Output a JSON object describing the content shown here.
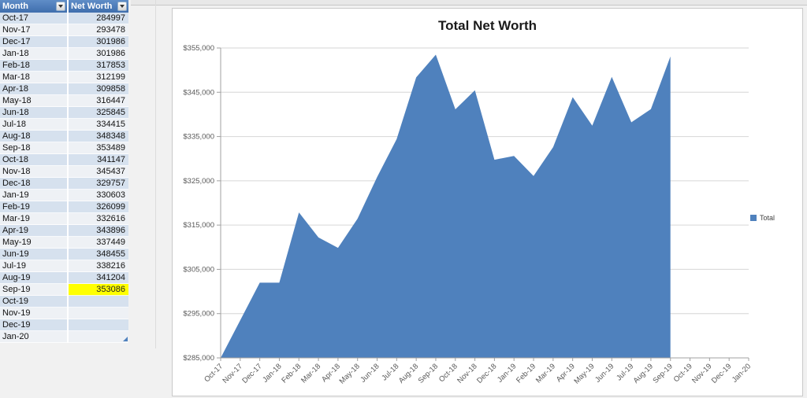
{
  "table": {
    "columns": [
      {
        "label": "Month"
      },
      {
        "label": "Net Worth"
      }
    ],
    "rows": [
      [
        "Oct-17",
        284997
      ],
      [
        "Nov-17",
        293478
      ],
      [
        "Dec-17",
        301986
      ],
      [
        "Jan-18",
        301986
      ],
      [
        "Feb-18",
        317853
      ],
      [
        "Mar-18",
        312199
      ],
      [
        "Apr-18",
        309858
      ],
      [
        "May-18",
        316447
      ],
      [
        "Jun-18",
        325845
      ],
      [
        "Jul-18",
        334415
      ],
      [
        "Aug-18",
        348348
      ],
      [
        "Sep-18",
        353489
      ],
      [
        "Oct-18",
        341147
      ],
      [
        "Nov-18",
        345437
      ],
      [
        "Dec-18",
        329757
      ],
      [
        "Jan-19",
        330603
      ],
      [
        "Feb-19",
        326099
      ],
      [
        "Mar-19",
        332616
      ],
      [
        "Apr-19",
        343896
      ],
      [
        "May-19",
        337449
      ],
      [
        "Jun-19",
        348455
      ],
      [
        "Jul-19",
        338216
      ],
      [
        "Aug-19",
        341204
      ],
      [
        "Sep-19",
        353086
      ],
      [
        "Oct-19",
        null
      ],
      [
        "Nov-19",
        null
      ],
      [
        "Dec-19",
        null
      ],
      [
        "Jan-20",
        null
      ]
    ],
    "highlighted_month": "Sep-19",
    "highlight_color": "#ffff00",
    "band_color": "#d6e1ee",
    "header_color": "#4f81bd"
  },
  "chart_data": {
    "type": "area",
    "title": "Total Net Worth",
    "categories": [
      "Oct-17",
      "Nov-17",
      "Dec-17",
      "Jan-18",
      "Feb-18",
      "Mar-18",
      "Apr-18",
      "May-18",
      "Jun-18",
      "Jul-18",
      "Aug-18",
      "Sep-18",
      "Oct-18",
      "Nov-18",
      "Dec-18",
      "Jan-19",
      "Feb-19",
      "Mar-19",
      "Apr-19",
      "May-19",
      "Jun-19",
      "Jul-19",
      "Aug-19",
      "Sep-19",
      "Oct-19",
      "Nov-19",
      "Dec-19",
      "Jan-20"
    ],
    "series": [
      {
        "name": "Total",
        "values": [
          284997,
          293478,
          301986,
          301986,
          317853,
          312199,
          309858,
          316447,
          325845,
          334415,
          348348,
          353489,
          341147,
          345437,
          329757,
          330603,
          326099,
          332616,
          343896,
          337449,
          348455,
          338216,
          341204,
          353086,
          null,
          null,
          null,
          null
        ]
      }
    ],
    "ylim": [
      285000,
      355000
    ],
    "ytick_step": 10000,
    "ytick_prefix": "$",
    "grid": true,
    "legend_position": "right",
    "colors": {
      "area": "#4f81bd",
      "gridline": "#d6d6d6",
      "axis": "#a0a0a0",
      "label": "#595959"
    }
  }
}
